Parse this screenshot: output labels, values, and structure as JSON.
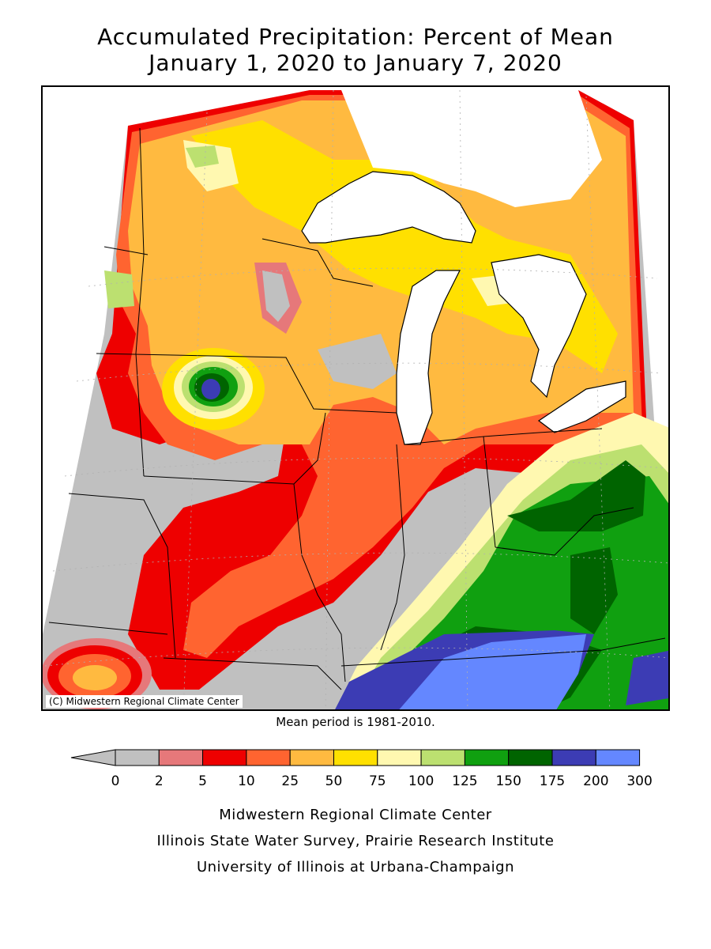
{
  "title": {
    "line1": "Accumulated Precipitation: Percent of Mean",
    "line2": "January 1, 2020 to January 7, 2020"
  },
  "map": {
    "copyright": "(C) Midwestern Regional Climate Center",
    "mean_period": "Mean period is 1981-2010."
  },
  "legend": {
    "tick_labels": [
      "0",
      "2",
      "5",
      "10",
      "25",
      "50",
      "75",
      "100",
      "125",
      "150",
      "175",
      "200",
      "300"
    ],
    "colors": [
      "#c0c0c0",
      "#e6787a",
      "#ee0000",
      "#ff6430",
      "#ffba40",
      "#ffe000",
      "#fff8b0",
      "#bce070",
      "#10a010",
      "#006400",
      "#3c3cb4",
      "#6487ff"
    ],
    "below_arrow_color": "#c0c0c0"
  },
  "footer": {
    "line1": "Midwestern Regional Climate Center",
    "line2": "Illinois State Water Survey, Prairie Research Institute",
    "line3": "University of Illinois at Urbana-Champaign"
  }
}
